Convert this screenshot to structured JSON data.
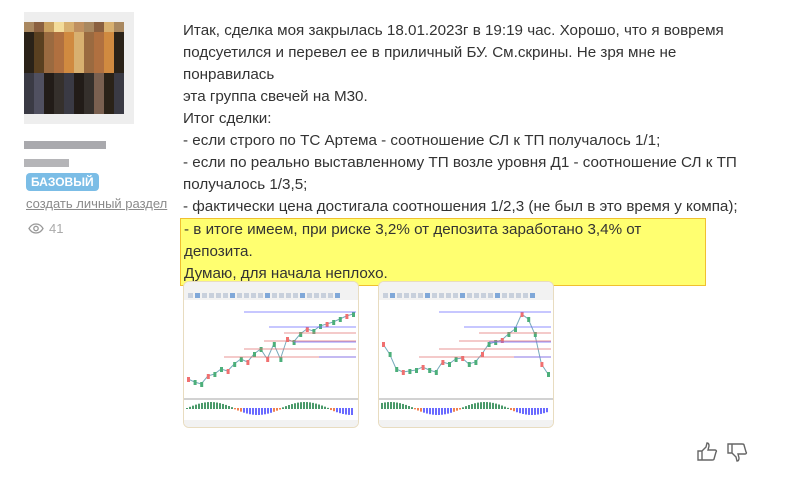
{
  "user": {
    "badge": "БАЗОВЫЙ",
    "create_section_link": "создать личный раздел",
    "views_count": "41",
    "badge_color": "#7bbde6"
  },
  "post": {
    "lines": [
      "Итак, сделка моя закрылась 18.01.2023г в 19:19 час. Хорошо, что я вовремя",
      "подсуетился и перевел ее в приличный БУ. См.скрины. Не зря мне не понравилась",
      "эта группа свечей на М30.",
      "Итог сделки:",
      "- если строго по ТС Артема - соотношение СЛ к ТП получалось 1/1;",
      "- если по реально выставленному ТП возле уровня Д1 - соотношение СЛ к ТП",
      "получалось 1/3,5;",
      "- фактически цена достигала соотношения 1/2,3 (не был в это время у компа);"
    ],
    "highlight": [
      "- в итоге имеем, при риске 3,2% от депозита заработано 3,4% от депозита.",
      "Думаю, для начала неплохо."
    ],
    "highlight_color": "#ffff70"
  },
  "screenshots": [
    {
      "icon": "chart-screenshot"
    },
    {
      "icon": "chart-screenshot"
    }
  ],
  "actions": {
    "like": "thumbs-up-icon",
    "dislike": "thumbs-down-icon"
  }
}
